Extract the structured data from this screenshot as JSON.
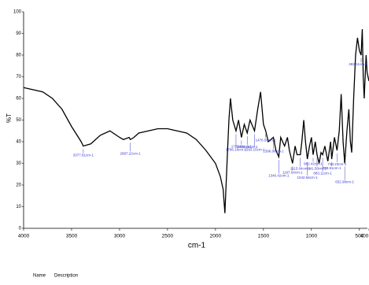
{
  "chart_data": {
    "type": "line",
    "xlabel": "cm-1",
    "ylabel": "%T",
    "xlim": [
      4000,
      400
    ],
    "ylim": [
      0,
      100
    ],
    "xticks": [
      4000,
      3500,
      3000,
      2500,
      2000,
      1500,
      1000,
      500,
      400
    ],
    "yticks": [
      0,
      10,
      20,
      30,
      40,
      50,
      60,
      70,
      80,
      90,
      100
    ],
    "color": "#000000",
    "x": [
      4000,
      3800,
      3700,
      3600,
      3500,
      3400,
      3377.81,
      3300,
      3200,
      3100,
      3000,
      2960,
      2900,
      2887.22,
      2850,
      2800,
      2700,
      2600,
      2500,
      2400,
      2300,
      2200,
      2100,
      2000,
      1950,
      1920,
      1902,
      1880,
      1860,
      1844,
      1820,
      1786.16,
      1760,
      1729.61,
      1700,
      1669.25,
      1640,
      1593.15,
      1560,
      1530,
      1500,
      1476.5,
      1450,
      1396.86,
      1370,
      1340.42,
      1320,
      1280,
      1250,
      1230,
      1197.04,
      1170,
      1150,
      1115.64,
      1100,
      1080,
      1062,
      1042.56,
      1020,
      1000,
      982.42,
      960,
      941.58,
      920,
      900,
      883.11,
      860,
      829,
      800,
      788.81,
      760,
      733.23,
      710,
      690,
      670,
      652.98,
      630,
      610,
      594,
      580,
      560,
      540,
      520,
      500,
      482.11,
      470,
      460,
      450,
      430,
      420,
      410,
      400
    ],
    "values": [
      65,
      63,
      60,
      55,
      47,
      40,
      38,
      39,
      43,
      45,
      42,
      41,
      42,
      41,
      42,
      44,
      45,
      46,
      46,
      45,
      44,
      41,
      36,
      30,
      24,
      18,
      7,
      30,
      50,
      60,
      50,
      45,
      50,
      42,
      48,
      44,
      50,
      45,
      55,
      63,
      48,
      45,
      40,
      42,
      36,
      33,
      42,
      38,
      42,
      36,
      30,
      38,
      34,
      34,
      40,
      50,
      40,
      32,
      38,
      42,
      34,
      40,
      34,
      30,
      35,
      34,
      38,
      31,
      40,
      32,
      42,
      36,
      45,
      62,
      40,
      30,
      45,
      55,
      40,
      35,
      60,
      80,
      88,
      82,
      80,
      92,
      70,
      60,
      80,
      72,
      70,
      68
    ],
    "annotations": [
      {
        "x": 3377.81,
        "label": "3377.81cm-1"
      },
      {
        "x": 2887.22,
        "label": "2887.22cm-1"
      },
      {
        "x": 1786.16,
        "label": "1786.16cm-1"
      },
      {
        "x": 1729.61,
        "label": "1729.61cm-1"
      },
      {
        "x": 1669.25,
        "label": "1669.25cm-1"
      },
      {
        "x": 1593.15,
        "label": "1593.15cm-1"
      },
      {
        "x": 1476.5,
        "label": "1476.50cm-1"
      },
      {
        "x": 1396.86,
        "label": "1396.86cm-1"
      },
      {
        "x": 1340.42,
        "label": "1340.42cm-1"
      },
      {
        "x": 1197.04,
        "label": "1197.04cm-1"
      },
      {
        "x": 1115.64,
        "label": "1115.64cm-1"
      },
      {
        "x": 1042.56,
        "label": "1042.56cm-1"
      },
      {
        "x": 982.42,
        "label": "982.42cm-1"
      },
      {
        "x": 941.58,
        "label": "941.58cm-1"
      },
      {
        "x": 883.11,
        "label": "883.11cm-1"
      },
      {
        "x": 788.81,
        "label": "788.81cm-1"
      },
      {
        "x": 733.23,
        "label": "733.23cm-1"
      },
      {
        "x": 652.98,
        "label": "652.98cm-1"
      },
      {
        "x": 482.11,
        "label": "482.11cm-1"
      }
    ],
    "footer": [
      "Name",
      "Description"
    ]
  }
}
